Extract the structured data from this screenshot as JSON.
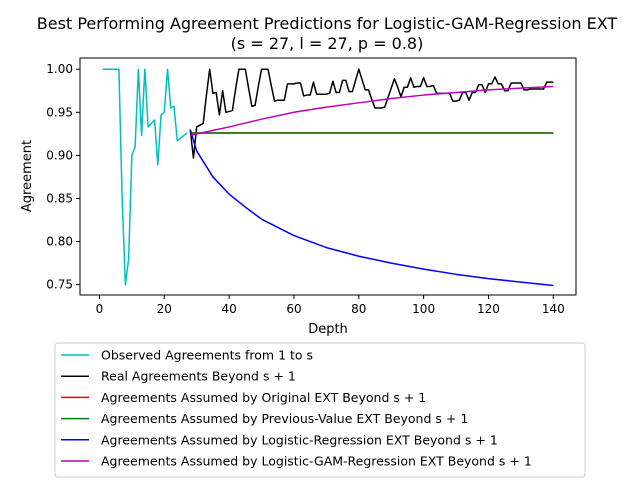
{
  "chart_data": {
    "type": "line",
    "title": "Best Performing Agreement Predictions for Logistic-GAM-Regression EXT",
    "subtitle": "(s = 27, l = 27, p = 0.8)",
    "xlabel": "Depth",
    "ylabel": "Agreement",
    "xlim": [
      -6,
      147
    ],
    "ylim": [
      0.738,
      1.013
    ],
    "xticks": [
      0,
      20,
      40,
      60,
      80,
      100,
      120,
      140
    ],
    "yticks": [
      0.75,
      0.8,
      0.85,
      0.9,
      0.95,
      1.0
    ],
    "xtick_labels": [
      "0",
      "20",
      "40",
      "60",
      "80",
      "100",
      "120",
      "140"
    ],
    "ytick_labels": [
      "0.75",
      "0.80",
      "0.85",
      "0.90",
      "0.95",
      "1.00"
    ],
    "grid": false,
    "legend_position": "bottom",
    "series": [
      {
        "name": "Observed Agreements from 1 to s",
        "color": "#00bfbf",
        "x": [
          1,
          2,
          3,
          4,
          5,
          6,
          7,
          8,
          9,
          10,
          11,
          12,
          13,
          14,
          15,
          16,
          17,
          18,
          19,
          20,
          21,
          22,
          23,
          24,
          25,
          26,
          27
        ],
        "y": [
          1.0,
          1.0,
          1.0,
          1.0,
          1.0,
          1.0,
          0.85,
          0.75,
          0.78,
          0.9,
          0.91,
          1.0,
          0.923,
          1.0,
          0.933,
          0.937,
          0.941,
          0.889,
          0.947,
          0.95,
          1.0,
          0.955,
          0.957,
          0.917,
          0.92,
          0.923,
          0.926
        ]
      },
      {
        "name": "Real Agreements Beyond s + 1",
        "color": "#000000",
        "x": [
          28,
          29,
          30,
          31,
          32,
          33,
          34,
          35,
          36,
          37,
          38,
          39,
          40,
          41,
          42,
          43,
          44,
          45,
          46,
          47,
          48,
          49,
          50,
          51,
          52,
          53,
          54,
          55,
          56,
          57,
          58,
          59,
          60,
          61,
          62,
          63,
          64,
          65,
          66,
          67,
          68,
          69,
          70,
          71,
          72,
          73,
          74,
          75,
          76,
          77,
          78,
          79,
          80,
          81,
          82,
          83,
          84,
          85,
          86,
          87,
          88,
          89,
          90,
          91,
          92,
          93,
          94,
          95,
          96,
          97,
          98,
          99,
          100,
          101,
          102,
          103,
          104,
          105,
          106,
          107,
          108,
          109,
          110,
          111,
          112,
          113,
          114,
          115,
          116,
          117,
          118,
          119,
          120,
          121,
          122,
          123,
          124,
          125,
          126,
          127,
          128,
          129,
          130,
          131,
          132,
          133,
          134,
          135,
          136,
          137,
          138,
          139,
          140
        ],
        "y": [
          0.93,
          0.897,
          0.933,
          0.935,
          0.937,
          0.97,
          1.0,
          0.972,
          0.973,
          0.947,
          0.975,
          0.95,
          0.951,
          0.952,
          0.977,
          1.0,
          1.0,
          1.0,
          0.978,
          0.957,
          0.958,
          0.98,
          1.0,
          1.0,
          1.0,
          0.981,
          0.963,
          0.964,
          0.964,
          0.964,
          0.983,
          0.983,
          0.983,
          0.984,
          0.984,
          0.969,
          0.97,
          0.97,
          0.985,
          0.971,
          0.971,
          0.971,
          0.971,
          0.972,
          0.986,
          0.973,
          0.973,
          0.987,
          0.987,
          0.974,
          0.974,
          0.987,
          1.0,
          0.988,
          0.976,
          0.976,
          0.965,
          0.955,
          0.955,
          0.955,
          0.956,
          0.967,
          0.978,
          0.989,
          0.979,
          0.968,
          0.979,
          0.979,
          0.99,
          0.979,
          0.98,
          0.98,
          0.99,
          0.98,
          0.98,
          0.981,
          0.972,
          0.972,
          0.972,
          0.972,
          0.972,
          0.963,
          0.963,
          0.964,
          0.973,
          0.973,
          0.964,
          0.973,
          0.973,
          0.982,
          0.982,
          0.973,
          0.983,
          0.983,
          0.991,
          0.983,
          0.983,
          0.975,
          0.975,
          0.984,
          0.984,
          0.984,
          0.984,
          0.976,
          0.976,
          0.977,
          0.977,
          0.977,
          0.977,
          0.977,
          0.985,
          0.985,
          0.985
        ]
      },
      {
        "name": "Agreements Assumed by Original EXT Beyond s + 1",
        "color": "#ff0000",
        "x": [
          28,
          140
        ],
        "y": [
          0.926,
          0.926
        ]
      },
      {
        "name": "Agreements Assumed by Previous-Value EXT Beyond s + 1",
        "color": "#008000",
        "x": [
          28,
          140
        ],
        "y": [
          0.926,
          0.926
        ]
      },
      {
        "name": "Agreements Assumed by Logistic-Regression EXT Beyond s + 1",
        "color": "#0000ff",
        "x": [
          28,
          30,
          35,
          40,
          45,
          50,
          60,
          70,
          80,
          90,
          100,
          110,
          120,
          130,
          140
        ],
        "y": [
          0.93,
          0.905,
          0.875,
          0.855,
          0.84,
          0.826,
          0.807,
          0.793,
          0.783,
          0.775,
          0.768,
          0.762,
          0.757,
          0.753,
          0.749
        ]
      },
      {
        "name": "Agreements Assumed by Logistic-GAM-Regression EXT Beyond s + 1",
        "color": "#bf00bf",
        "x": [
          28,
          30,
          35,
          40,
          50,
          60,
          70,
          80,
          90,
          100,
          110,
          120,
          130,
          140
        ],
        "y": [
          0.923,
          0.925,
          0.929,
          0.933,
          0.942,
          0.95,
          0.956,
          0.961,
          0.966,
          0.97,
          0.973,
          0.976,
          0.978,
          0.98
        ]
      }
    ]
  }
}
